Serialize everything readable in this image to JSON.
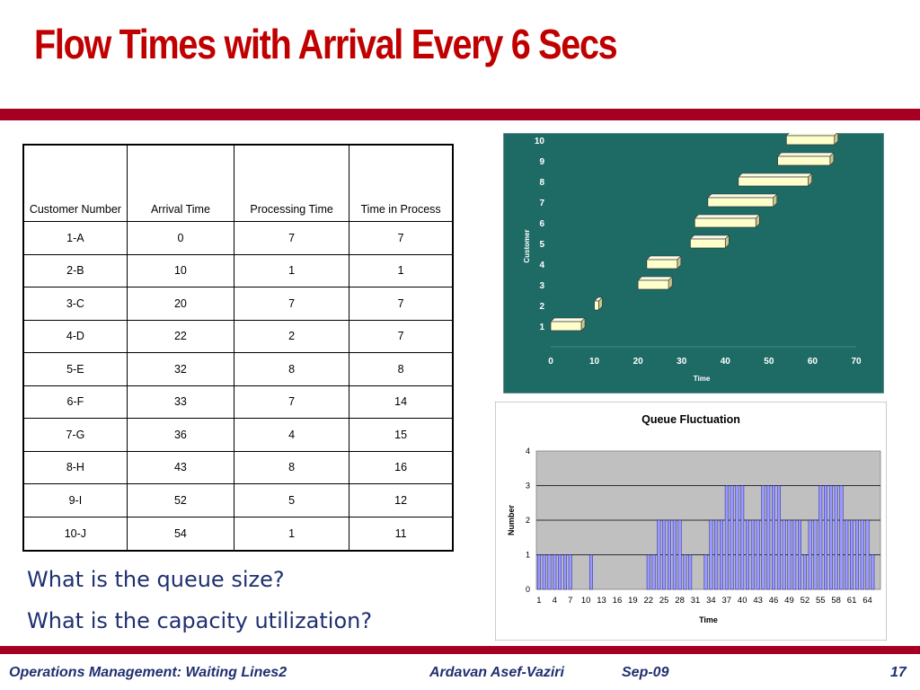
{
  "slide": {
    "title": "Flow Times with Arrival Every 6 Secs",
    "questions": [
      "What is the queue size?",
      "What is the capacity utilization?"
    ],
    "footer": {
      "left": "Operations Management: Waiting Lines2",
      "author": "Ardavan Asef-Vaziri",
      "date": "Sep-09",
      "page": "17"
    }
  },
  "colors": {
    "title": "#c00000",
    "accent_bar": "#a50021",
    "text_blue": "#1f3070",
    "gantt_bg": "#1e6b66",
    "gantt_bar": "#ffffcc",
    "queue_plot_bg": "#c0c0c0",
    "queue_bar": "#9999ff"
  },
  "chart_data": [
    {
      "type": "table",
      "columns": [
        "Customer Number",
        "Arrival Time",
        "Processing Time",
        "Time in Process"
      ],
      "rows": [
        [
          "1-A",
          "0",
          "7",
          "7"
        ],
        [
          "2-B",
          "10",
          "1",
          "1"
        ],
        [
          "3-C",
          "20",
          "7",
          "7"
        ],
        [
          "4-D",
          "22",
          "2",
          "7"
        ],
        [
          "5-E",
          "32",
          "8",
          "8"
        ],
        [
          "6-F",
          "33",
          "7",
          "14"
        ],
        [
          "7-G",
          "36",
          "4",
          "15"
        ],
        [
          "8-H",
          "43",
          "8",
          "16"
        ],
        [
          "9-I",
          "52",
          "5",
          "12"
        ],
        [
          "10-J",
          "54",
          "1",
          "11"
        ]
      ]
    },
    {
      "type": "bar",
      "subtype": "gantt",
      "title": "",
      "xlabel": "Time",
      "ylabel": "Customer",
      "xlim": [
        0,
        70
      ],
      "xticks": [
        0,
        10,
        20,
        30,
        40,
        50,
        60,
        70
      ],
      "ylim": [
        0,
        10
      ],
      "yticks": [
        1,
        2,
        3,
        4,
        5,
        6,
        7,
        8,
        9,
        10
      ],
      "grid": false,
      "bars": [
        {
          "customer": 1,
          "start": 0,
          "end": 7
        },
        {
          "customer": 2,
          "start": 10,
          "end": 11
        },
        {
          "customer": 3,
          "start": 20,
          "end": 27
        },
        {
          "customer": 4,
          "start": 22,
          "end": 29
        },
        {
          "customer": 5,
          "start": 32,
          "end": 40
        },
        {
          "customer": 6,
          "start": 33,
          "end": 47
        },
        {
          "customer": 7,
          "start": 36,
          "end": 51
        },
        {
          "customer": 8,
          "start": 43,
          "end": 59
        },
        {
          "customer": 9,
          "start": 52,
          "end": 64
        },
        {
          "customer": 10,
          "start": 54,
          "end": 65
        }
      ]
    },
    {
      "type": "bar",
      "title": "Queue Fluctuation",
      "xlabel": "Time",
      "ylabel": "Number",
      "ylim": [
        0,
        4
      ],
      "yticks": [
        0,
        1,
        2,
        3,
        4
      ],
      "xtick_labels": [
        "1",
        "4",
        "7",
        "10",
        "13",
        "16",
        "19",
        "22",
        "25",
        "28",
        "31",
        "34",
        "37",
        "40",
        "43",
        "46",
        "49",
        "52",
        "55",
        "58",
        "61",
        "64"
      ],
      "grid": true,
      "categories": [
        1,
        2,
        3,
        4,
        5,
        6,
        7,
        8,
        9,
        10,
        11,
        12,
        13,
        14,
        15,
        16,
        17,
        18,
        19,
        20,
        21,
        22,
        23,
        24,
        25,
        26,
        27,
        28,
        29,
        30,
        31,
        32,
        33,
        34,
        35,
        36,
        37,
        38,
        39,
        40,
        41,
        42,
        43,
        44,
        45,
        46,
        47,
        48,
        49,
        50,
        51,
        52,
        53,
        54,
        55,
        56,
        57,
        58,
        59,
        60,
        61,
        62,
        63,
        64,
        65,
        66
      ],
      "values": [
        1,
        1,
        1,
        1,
        1,
        1,
        1,
        0,
        0,
        0,
        1,
        0,
        0,
        0,
        0,
        0,
        0,
        0,
        0,
        0,
        0,
        1,
        1,
        2,
        2,
        2,
        2,
        2,
        1,
        1,
        0,
        0,
        1,
        2,
        2,
        2,
        3,
        3,
        3,
        3,
        2,
        2,
        2,
        3,
        3,
        3,
        3,
        2,
        2,
        2,
        2,
        1,
        2,
        2,
        3,
        3,
        3,
        3,
        3,
        2,
        2,
        2,
        2,
        2,
        1,
        0
      ]
    }
  ]
}
